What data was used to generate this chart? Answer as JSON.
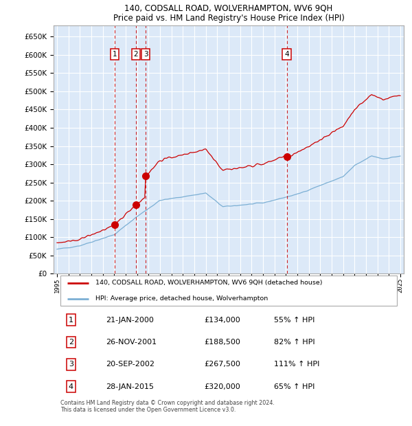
{
  "title": "140, CODSALL ROAD, WOLVERHAMPTON, WV6 9QH",
  "subtitle": "Price paid vs. HM Land Registry's House Price Index (HPI)",
  "ylim": [
    0,
    680000
  ],
  "yticks": [
    0,
    50000,
    100000,
    150000,
    200000,
    250000,
    300000,
    350000,
    400000,
    450000,
    500000,
    550000,
    600000,
    650000
  ],
  "xlim_start": 1994.7,
  "xlim_end": 2025.3,
  "background_color": "#ffffff",
  "plot_bg_color": "#dce9f8",
  "grid_color": "#ffffff",
  "red_line_color": "#cc0000",
  "blue_line_color": "#7bafd4",
  "sale_points": [
    {
      "year": 2000.05,
      "price": 134000,
      "label": "1"
    },
    {
      "year": 2001.9,
      "price": 188500,
      "label": "2"
    },
    {
      "year": 2002.75,
      "price": 267500,
      "label": "3"
    },
    {
      "year": 2015.07,
      "price": 320000,
      "label": "4"
    }
  ],
  "legend_entries": [
    "140, CODSALL ROAD, WOLVERHAMPTON, WV6 9QH (detached house)",
    "HPI: Average price, detached house, Wolverhampton"
  ],
  "table_rows": [
    [
      "1",
      "21-JAN-2000",
      "£134,000",
      "55% ↑ HPI"
    ],
    [
      "2",
      "26-NOV-2001",
      "£188,500",
      "82% ↑ HPI"
    ],
    [
      "3",
      "20-SEP-2002",
      "£267,500",
      "111% ↑ HPI"
    ],
    [
      "4",
      "28-JAN-2015",
      "£320,000",
      "65% ↑ HPI"
    ]
  ],
  "footer": "Contains HM Land Registry data © Crown copyright and database right 2024.\nThis data is licensed under the Open Government Licence v3.0."
}
